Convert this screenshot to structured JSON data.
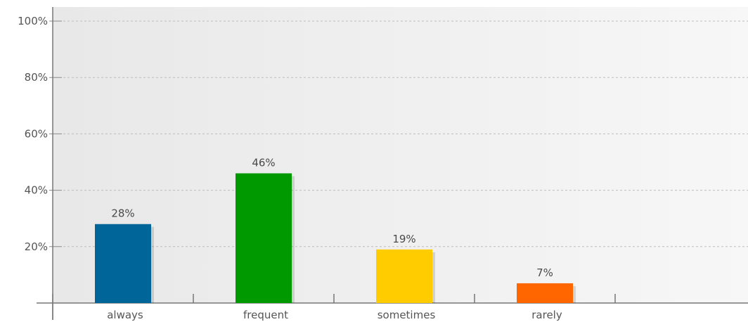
{
  "chart_data": {
    "type": "bar",
    "categories": [
      "always",
      "frequent",
      "sometimes",
      "rarely"
    ],
    "values": [
      28,
      46,
      19,
      7
    ],
    "value_labels": [
      "28%",
      "46%",
      "19%",
      "7%"
    ],
    "colors": [
      "#006699",
      "#009900",
      "#FFCC00",
      "#FF6600"
    ],
    "ylim": [
      0,
      100
    ],
    "yticks": [
      20,
      40,
      60,
      80,
      100
    ],
    "ytick_labels": [
      "20%",
      "40%",
      "60%",
      "80%",
      "100%"
    ],
    "grid": true,
    "title": "",
    "xlabel": "",
    "ylabel": ""
  }
}
